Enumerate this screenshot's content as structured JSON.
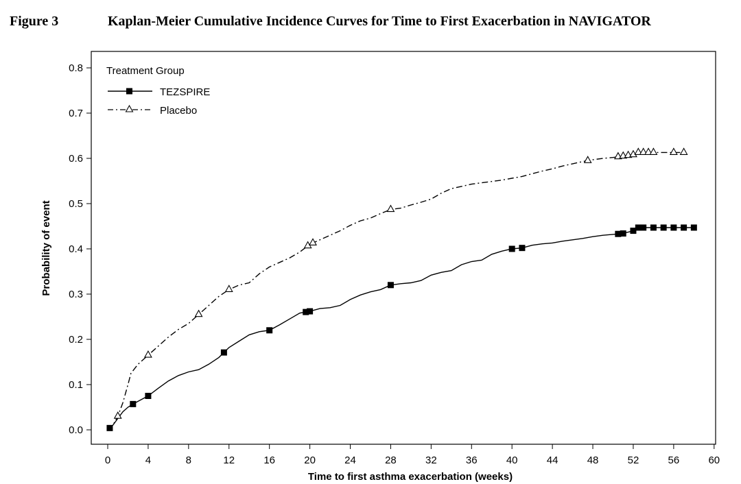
{
  "figure": {
    "label": "Figure 3",
    "title": "Kaplan-Meier Cumulative Incidence Curves for Time to First Exacerbation in NAVIGATOR"
  },
  "chart_data": {
    "type": "line",
    "title": "Kaplan-Meier Cumulative Incidence Curves for Time to First Exacerbation in NAVIGATOR",
    "xlabel": "Time to first asthma exacerbation (weeks)",
    "ylabel": "Probability of event",
    "xlim": [
      0,
      60
    ],
    "ylim": [
      0,
      0.8
    ],
    "xticks": [
      "0",
      "4",
      "8",
      "12",
      "16",
      "20",
      "24",
      "28",
      "32",
      "36",
      "40",
      "44",
      "48",
      "52",
      "56",
      "60"
    ],
    "yticks": [
      "0.0",
      "0.1",
      "0.2",
      "0.3",
      "0.4",
      "0.5",
      "0.6",
      "0.7",
      "0.8"
    ],
    "grid": false,
    "legend": {
      "title": "Treatment Group",
      "position": "top-left",
      "entries": [
        "TEZSPIRE",
        "Placebo"
      ]
    },
    "series": [
      {
        "name": "TEZSPIRE",
        "line_style": "solid",
        "marker": "filled-square",
        "color": "#000000",
        "points": [
          [
            0,
            0
          ],
          [
            0.5,
            0.01
          ],
          [
            1,
            0.025
          ],
          [
            1.5,
            0.04
          ],
          [
            2,
            0.05
          ],
          [
            2.5,
            0.057
          ],
          [
            3,
            0.063
          ],
          [
            4,
            0.075
          ],
          [
            5,
            0.092
          ],
          [
            6,
            0.108
          ],
          [
            7,
            0.12
          ],
          [
            8,
            0.128
          ],
          [
            9,
            0.133
          ],
          [
            10,
            0.145
          ],
          [
            11,
            0.16
          ],
          [
            12,
            0.182
          ],
          [
            13,
            0.196
          ],
          [
            14,
            0.21
          ],
          [
            15,
            0.217
          ],
          [
            16,
            0.22
          ],
          [
            17,
            0.232
          ],
          [
            18,
            0.245
          ],
          [
            19,
            0.258
          ],
          [
            20,
            0.262
          ],
          [
            21,
            0.268
          ],
          [
            22,
            0.27
          ],
          [
            23,
            0.275
          ],
          [
            24,
            0.288
          ],
          [
            25,
            0.298
          ],
          [
            26,
            0.305
          ],
          [
            27,
            0.31
          ],
          [
            28,
            0.32
          ],
          [
            29,
            0.323
          ],
          [
            30,
            0.325
          ],
          [
            31,
            0.33
          ],
          [
            32,
            0.342
          ],
          [
            33,
            0.348
          ],
          [
            34,
            0.352
          ],
          [
            35,
            0.365
          ],
          [
            36,
            0.372
          ],
          [
            37,
            0.375
          ],
          [
            38,
            0.388
          ],
          [
            39,
            0.395
          ],
          [
            40,
            0.4
          ],
          [
            41,
            0.402
          ],
          [
            42,
            0.408
          ],
          [
            43,
            0.411
          ],
          [
            44,
            0.413
          ],
          [
            45,
            0.417
          ],
          [
            46,
            0.42
          ],
          [
            47,
            0.423
          ],
          [
            48,
            0.427
          ],
          [
            49,
            0.43
          ],
          [
            50,
            0.432
          ],
          [
            51,
            0.434
          ],
          [
            52,
            0.44
          ],
          [
            52.5,
            0.447
          ],
          [
            58,
            0.447
          ]
        ],
        "censor_x": [
          0.2,
          2.5,
          4,
          11.5,
          16,
          19.6,
          20,
          28,
          40,
          41,
          50.5,
          51,
          52,
          52.5,
          53,
          54,
          55,
          56,
          57,
          58
        ]
      },
      {
        "name": "Placebo",
        "line_style": "dashdot",
        "marker": "open-triangle",
        "color": "#000000",
        "points": [
          [
            0,
            0
          ],
          [
            0.5,
            0.01
          ],
          [
            1,
            0.03
          ],
          [
            1.5,
            0.06
          ],
          [
            2,
            0.1
          ],
          [
            2.3,
            0.125
          ],
          [
            3,
            0.145
          ],
          [
            4,
            0.165
          ],
          [
            5,
            0.185
          ],
          [
            6,
            0.205
          ],
          [
            7,
            0.222
          ],
          [
            8,
            0.235
          ],
          [
            9,
            0.255
          ],
          [
            10,
            0.275
          ],
          [
            11,
            0.295
          ],
          [
            12,
            0.31
          ],
          [
            13,
            0.32
          ],
          [
            14,
            0.325
          ],
          [
            15,
            0.345
          ],
          [
            16,
            0.36
          ],
          [
            17,
            0.37
          ],
          [
            18,
            0.38
          ],
          [
            19,
            0.393
          ],
          [
            20,
            0.41
          ],
          [
            21,
            0.42
          ],
          [
            22,
            0.43
          ],
          [
            23,
            0.44
          ],
          [
            24,
            0.452
          ],
          [
            25,
            0.462
          ],
          [
            26,
            0.468
          ],
          [
            27,
            0.478
          ],
          [
            28,
            0.487
          ],
          [
            29,
            0.49
          ],
          [
            30,
            0.497
          ],
          [
            31,
            0.503
          ],
          [
            32,
            0.51
          ],
          [
            33,
            0.523
          ],
          [
            34,
            0.533
          ],
          [
            35,
            0.538
          ],
          [
            36,
            0.543
          ],
          [
            37,
            0.546
          ],
          [
            38,
            0.549
          ],
          [
            39,
            0.552
          ],
          [
            40,
            0.556
          ],
          [
            41,
            0.56
          ],
          [
            42,
            0.566
          ],
          [
            43,
            0.572
          ],
          [
            44,
            0.577
          ],
          [
            45,
            0.583
          ],
          [
            46,
            0.588
          ],
          [
            47,
            0.593
          ],
          [
            48,
            0.597
          ],
          [
            49,
            0.6
          ],
          [
            50,
            0.602
          ],
          [
            51,
            0.605
          ],
          [
            52,
            0.608
          ],
          [
            52.5,
            0.613
          ],
          [
            57,
            0.613
          ]
        ],
        "censor_x": [
          1,
          4,
          9,
          12,
          19.8,
          20.3,
          28,
          47.5,
          50.5,
          51,
          51.5,
          52,
          52.5,
          53,
          53.5,
          54,
          56,
          57
        ]
      }
    ]
  }
}
